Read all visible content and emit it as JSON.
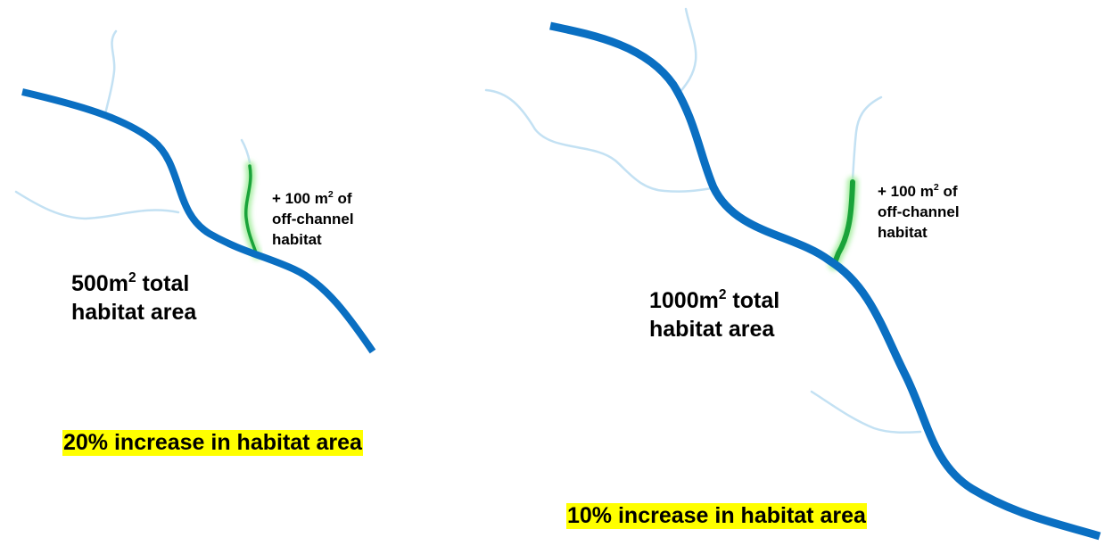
{
  "colors": {
    "main_river": "#0a6fc2",
    "tributary": "#c3e1f3",
    "off_channel": "#1aa33a",
    "off_channel_glow": "#a6eea0",
    "highlight": "#ffff00",
    "text": "#000000"
  },
  "left_panel": {
    "callout": {
      "line1_prefix": "+ 100 m",
      "line1_sup": "2",
      "line1_suffix": " of",
      "line2": "off-channel",
      "line3": "habitat"
    },
    "total": {
      "line1_prefix": "500m",
      "line1_sup": "2",
      "line1_suffix": " total",
      "line2": "habitat area"
    },
    "result": "20% increase in habitat area"
  },
  "right_panel": {
    "callout": {
      "line1_prefix": "+ 100 m",
      "line1_sup": "2",
      "line1_suffix": " of",
      "line2": "off-channel",
      "line3": "habitat"
    },
    "total": {
      "line1_prefix": "1000m",
      "line1_sup": "2",
      "line1_suffix": " total",
      "line2": "habitat area"
    },
    "result": "10% increase in habitat area"
  }
}
